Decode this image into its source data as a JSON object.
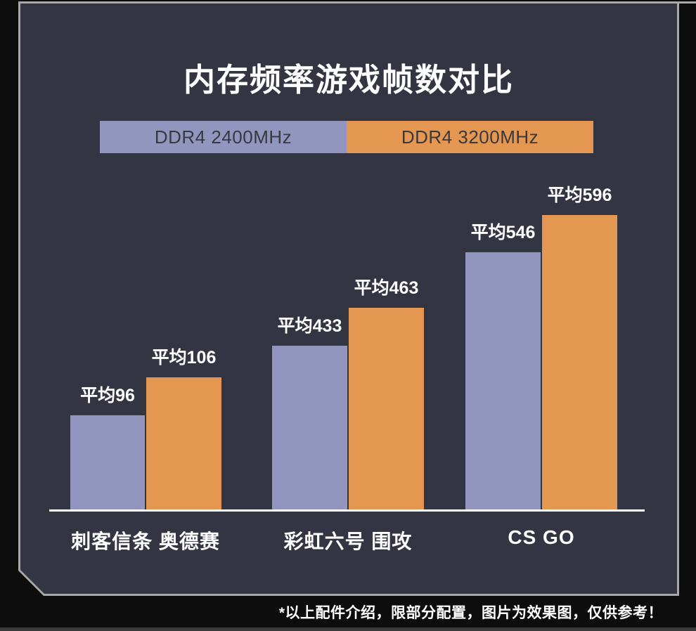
{
  "title": "内存频率游戏帧数对比",
  "legend": {
    "items": [
      {
        "label": "DDR4 2400MHz",
        "color": "#9296bf"
      },
      {
        "label": "DDR4 3200MHz",
        "color": "#e39750"
      }
    ]
  },
  "footer_note": "*以上配件介绍，限部分配置，图片为效果图，仅供参考！",
  "colors": {
    "panel_background": "#333543",
    "panel_border": "#a9a9a7",
    "page_background": "#0d0d0d",
    "series1": "#9296bf",
    "series2": "#e39750",
    "text_light": "#ffffff",
    "legend_text": "#38393f"
  },
  "chart_data": {
    "type": "bar",
    "title": "内存频率游戏帧数对比",
    "categories": [
      "刺客信条 奥德赛",
      "彩虹六号 围攻",
      "CS GO"
    ],
    "series": [
      {
        "name": "DDR4 2400MHz",
        "color": "#9296bf",
        "values": [
          96,
          433,
          546
        ],
        "bar_labels": [
          "平均96",
          "平均433",
          "平均546"
        ]
      },
      {
        "name": "DDR4 3200MHz",
        "color": "#e39750",
        "values": [
          106,
          463,
          596
        ],
        "bar_labels": [
          "平均106",
          "平均463",
          "平均596"
        ]
      }
    ],
    "value_label_prefix": "平均",
    "unit": "FPS",
    "legend_position": "top",
    "grid": false,
    "axis_labels_shown": false,
    "note": "bar heights are stylized, not to numeric scale"
  }
}
